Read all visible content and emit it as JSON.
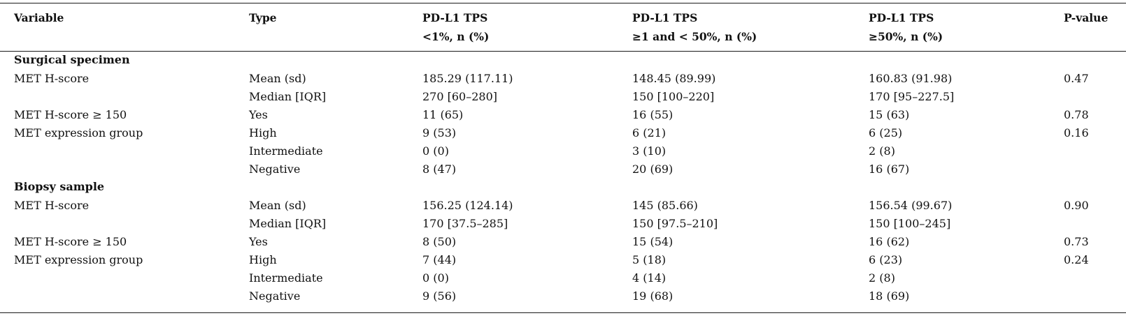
{
  "headers": {
    "variable": "Variable",
    "type": "Type",
    "col1": [
      "PD-L1 TPS",
      "<1%, n (%)"
    ],
    "col2": [
      "PD-L1 TPS",
      "≥1 and < 50%, n (%)"
    ],
    "col3": [
      "PD-L1 TPS",
      "≥50%, n (%)"
    ],
    "pvalue": "P-value"
  },
  "sections": [
    {
      "title": "Surgical specimen",
      "rows": [
        {
          "variable": "MET H-score",
          "type": "Mean (sd)",
          "v1": "185.29 (117.11)",
          "v2": "148.45 (89.99)",
          "v3": "160.83 (91.98)",
          "p": "0.47"
        },
        {
          "variable": "",
          "type": "Median [IQR]",
          "v1": "270 [60–280]",
          "v2": "150 [100–220]",
          "v3": "170 [95–227.5]",
          "p": ""
        },
        {
          "variable": "MET H-score ≥ 150",
          "type": "Yes",
          "v1": "11 (65)",
          "v2": "16 (55)",
          "v3": "15 (63)",
          "p": "0.78"
        },
        {
          "variable": "MET expression group",
          "type": "High",
          "v1": "9 (53)",
          "v2": "6 (21)",
          "v3": "6 (25)",
          "p": "0.16"
        },
        {
          "variable": "",
          "type": "Intermediate",
          "v1": "0 (0)",
          "v2": "3 (10)",
          "v3": "2 (8)",
          "p": ""
        },
        {
          "variable": "",
          "type": "Negative",
          "v1": "8 (47)",
          "v2": "20 (69)",
          "v3": "16 (67)",
          "p": ""
        }
      ]
    },
    {
      "title": "Biopsy sample",
      "rows": [
        {
          "variable": "MET H-score",
          "type": "Mean (sd)",
          "v1": "156.25 (124.14)",
          "v2": "145 (85.66)",
          "v3": "156.54 (99.67)",
          "p": "0.90"
        },
        {
          "variable": "",
          "type": "Median [IQR]",
          "v1": "170 [37.5–285]",
          "v2": "150 [97.5–210]",
          "v3": "150 [100–245]",
          "p": ""
        },
        {
          "variable": "MET H-score ≥ 150",
          "type": "Yes",
          "v1": "8 (50)",
          "v2": "15 (54)",
          "v3": "16 (62)",
          "p": "0.73"
        },
        {
          "variable": "MET expression group",
          "type": "High",
          "v1": "7 (44)",
          "v2": "5 (18)",
          "v3": "6 (23)",
          "p": "0.24"
        },
        {
          "variable": "",
          "type": "Intermediate",
          "v1": "0 (0)",
          "v2": "4 (14)",
          "v3": "2 (8)",
          "p": ""
        },
        {
          "variable": "",
          "type": "Negative",
          "v1": "9 (56)",
          "v2": "19 (68)",
          "v3": "18 (69)",
          "p": ""
        }
      ]
    }
  ]
}
